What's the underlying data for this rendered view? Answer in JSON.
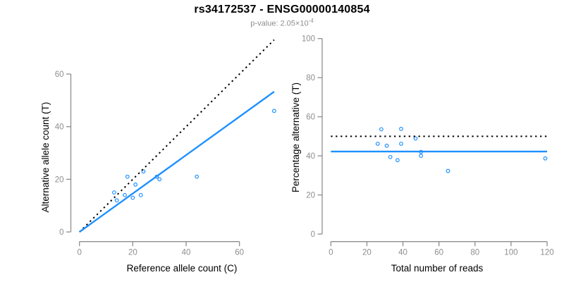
{
  "header": {
    "title": "rs34172537 - ENSG00000140854",
    "subtitle_prefix": "p-value: 2.05×10",
    "subtitle_exponent": "-4"
  },
  "colors": {
    "accent_blue": "#1E90FF",
    "axis_gray": "#8E8E8E",
    "label_black": "#000000",
    "subtitle_gray": "#8E8E8E",
    "background": "#FFFFFF"
  },
  "chart_data": [
    {
      "id": "allele-counts",
      "type": "scatter",
      "title": "",
      "xlabel": "Reference allele count (C)",
      "ylabel": "Alternative allele count (T)",
      "xticks": [
        0,
        20,
        40,
        60
      ],
      "yticks": [
        0,
        20,
        40,
        60
      ],
      "xlim": [
        0,
        75
      ],
      "ylim": [
        0,
        75
      ],
      "grid": false,
      "point_color": "#1E90FF",
      "points": [
        [
          13,
          15
        ],
        [
          14,
          12
        ],
        [
          17,
          14
        ],
        [
          18,
          21
        ],
        [
          20,
          13
        ],
        [
          21,
          18
        ],
        [
          23,
          14
        ],
        [
          24,
          23
        ],
        [
          29,
          21
        ],
        [
          30,
          20
        ],
        [
          44,
          21
        ],
        [
          73,
          46
        ]
      ],
      "lines": [
        {
          "name": "identity-line",
          "x1": 0,
          "y1": 0,
          "x2": 73,
          "y2": 73,
          "style": "dotted",
          "color": "#000000"
        },
        {
          "name": "fit-line",
          "x1": 0,
          "y1": 0,
          "x2": 73,
          "y2": 53.3,
          "style": "solid",
          "color": "#1E90FF"
        }
      ]
    },
    {
      "id": "percentage-vs-coverage",
      "type": "scatter",
      "title": "",
      "xlabel": "Total number of reads",
      "ylabel": "Percentage alternative (T)",
      "xticks": [
        0,
        20,
        40,
        60,
        80,
        100,
        120
      ],
      "yticks": [
        0,
        20,
        40,
        60,
        80,
        100
      ],
      "xlim": [
        0,
        124
      ],
      "ylim": [
        0,
        100
      ],
      "grid": false,
      "point_color": "#1E90FF",
      "points": [
        [
          26,
          46.2
        ],
        [
          28,
          53.6
        ],
        [
          31,
          45.2
        ],
        [
          33,
          39.4
        ],
        [
          37,
          37.8
        ],
        [
          39,
          53.8
        ],
        [
          39,
          46.2
        ],
        [
          47,
          48.9
        ],
        [
          50,
          42.0
        ],
        [
          50,
          40.0
        ],
        [
          65,
          32.3
        ],
        [
          119,
          38.7
        ]
      ],
      "lines": [
        {
          "name": "null-line-50pct",
          "x1": 0,
          "y1": 50,
          "x2": 120,
          "y2": 50,
          "style": "dotted",
          "color": "#000000"
        },
        {
          "name": "fit-line",
          "x1": 0,
          "y1": 42.2,
          "x2": 120,
          "y2": 42.2,
          "style": "solid",
          "color": "#1E90FF"
        }
      ]
    }
  ]
}
